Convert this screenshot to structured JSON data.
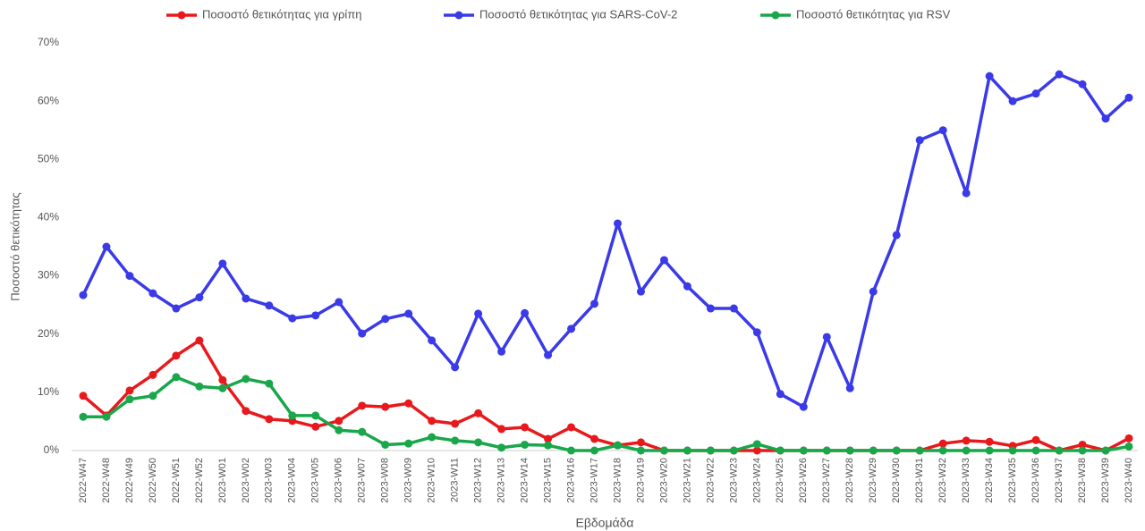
{
  "chart_data": {
    "type": "line",
    "x_label": "Εβδομάδα",
    "y_label": "Ποσοστό θετικότητας",
    "categories": [
      "2022-W47",
      "2022-W48",
      "2022-W49",
      "2022-W50",
      "2022-W51",
      "2022-W52",
      "2023-W01",
      "2023-W02",
      "2023-W03",
      "2023-W04",
      "2023-W05",
      "2023-W06",
      "2023-W07",
      "2023-W08",
      "2023-W09",
      "2023-W10",
      "2023-W11",
      "2023-W12",
      "2023-W13",
      "2023-W14",
      "2023-W15",
      "2023-W16",
      "2023-W17",
      "2023-W18",
      "2023-W19",
      "2023-W20",
      "2023-W21",
      "2023-W22",
      "2023-W23",
      "2023-W24",
      "2023-W25",
      "2023-W26",
      "2023-W27",
      "2023-W28",
      "2023-W29",
      "2023-W30",
      "2023-W31",
      "2023-W32",
      "2023-W33",
      "2023-W34",
      "2023-W35",
      "2023-W36",
      "2023-W37",
      "2023-W38",
      "2023-W39",
      "2023-W40"
    ],
    "series": [
      {
        "name": "Ποσοστό θετικότητας για γρίπη",
        "color": "#e8191c",
        "values": [
          9.4,
          6.0,
          10.3,
          13.0,
          16.3,
          18.9,
          12.1,
          6.8,
          5.4,
          5.1,
          4.1,
          5.1,
          7.7,
          7.5,
          8.1,
          5.1,
          4.6,
          6.4,
          3.7,
          4.0,
          2.0,
          4.0,
          2.0,
          0.9,
          1.4,
          0,
          0,
          0,
          0,
          0,
          0,
          0,
          0,
          0,
          0,
          0,
          0,
          1.2,
          1.7,
          1.5,
          0.8,
          1.8,
          0,
          1.0,
          0,
          2.1
        ]
      },
      {
        "name": "Ποσοστό θετικότητας για SARS-CoV-2",
        "color": "#3a3ae8",
        "values": [
          26.7,
          35.0,
          30.0,
          27.0,
          24.4,
          26.3,
          32.1,
          26.1,
          24.9,
          22.7,
          23.2,
          25.5,
          20.1,
          22.6,
          23.5,
          18.9,
          14.3,
          23.5,
          17.0,
          23.6,
          16.4,
          20.9,
          25.2,
          39.0,
          27.3,
          32.7,
          28.2,
          24.4,
          24.4,
          20.3,
          9.7,
          7.5,
          19.5,
          10.7,
          27.3,
          37.0,
          53.3,
          55.0,
          44.2,
          64.3,
          60.0,
          61.3,
          64.6,
          62.9,
          57.0,
          60.6
        ]
      },
      {
        "name": "Ποσοστό θετικότητας για RSV",
        "color": "#1aa64a",
        "values": [
          5.8,
          5.8,
          8.8,
          9.4,
          12.6,
          11.0,
          10.7,
          12.3,
          11.5,
          6.0,
          6.0,
          3.5,
          3.2,
          1.0,
          1.2,
          2.3,
          1.7,
          1.4,
          0.5,
          1.0,
          0.9,
          0,
          0,
          0.9,
          0,
          0,
          0,
          0,
          0,
          1.1,
          0,
          0,
          0,
          0,
          0,
          0,
          0,
          0,
          0,
          0,
          0,
          0,
          0,
          0,
          0,
          0.7
        ]
      }
    ],
    "ylim": [
      0,
      70
    ],
    "yticks": [
      {
        "value": 0,
        "label": "0%"
      },
      {
        "value": 10,
        "label": "10%"
      },
      {
        "value": 20,
        "label": "20%"
      },
      {
        "value": 30,
        "label": "30%"
      },
      {
        "value": 40,
        "label": "40%"
      },
      {
        "value": 50,
        "label": "50%"
      },
      {
        "value": 60,
        "label": "60%"
      },
      {
        "value": 70,
        "label": "70%"
      }
    ],
    "grid": false,
    "legend": "top"
  }
}
